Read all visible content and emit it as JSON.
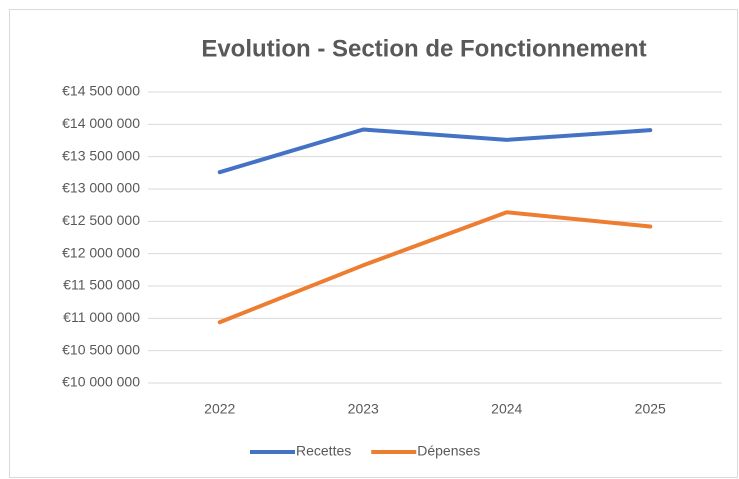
{
  "chart_data": {
    "type": "line",
    "title": "Evolution - Section de Fonctionnement",
    "categories": [
      "2022",
      "2023",
      "2024",
      "2025"
    ],
    "series": [
      {
        "name": "Recettes",
        "color": "#4472c4",
        "values": [
          13260000,
          13920000,
          13760000,
          13910000
        ]
      },
      {
        "name": "Dépenses",
        "color": "#ed7d31",
        "values": [
          10940000,
          11820000,
          12640000,
          12420000
        ]
      }
    ],
    "ylim": [
      10000000,
      14500000
    ],
    "yticks": [
      {
        "value": 10000000,
        "label": "€10 000 000"
      },
      {
        "value": 10500000,
        "label": "€10 500 000"
      },
      {
        "value": 11000000,
        "label": "€11 000 000"
      },
      {
        "value": 11500000,
        "label": "€11 500 000"
      },
      {
        "value": 12000000,
        "label": "€12 000 000"
      },
      {
        "value": 12500000,
        "label": "€12 500 000"
      },
      {
        "value": 13000000,
        "label": "€13 000 000"
      },
      {
        "value": 13500000,
        "label": "€13 500 000"
      },
      {
        "value": 14000000,
        "label": "€14 000 000"
      },
      {
        "value": 14500000,
        "label": "€14 500 000"
      }
    ],
    "grid": true,
    "legend": "bottom"
  }
}
